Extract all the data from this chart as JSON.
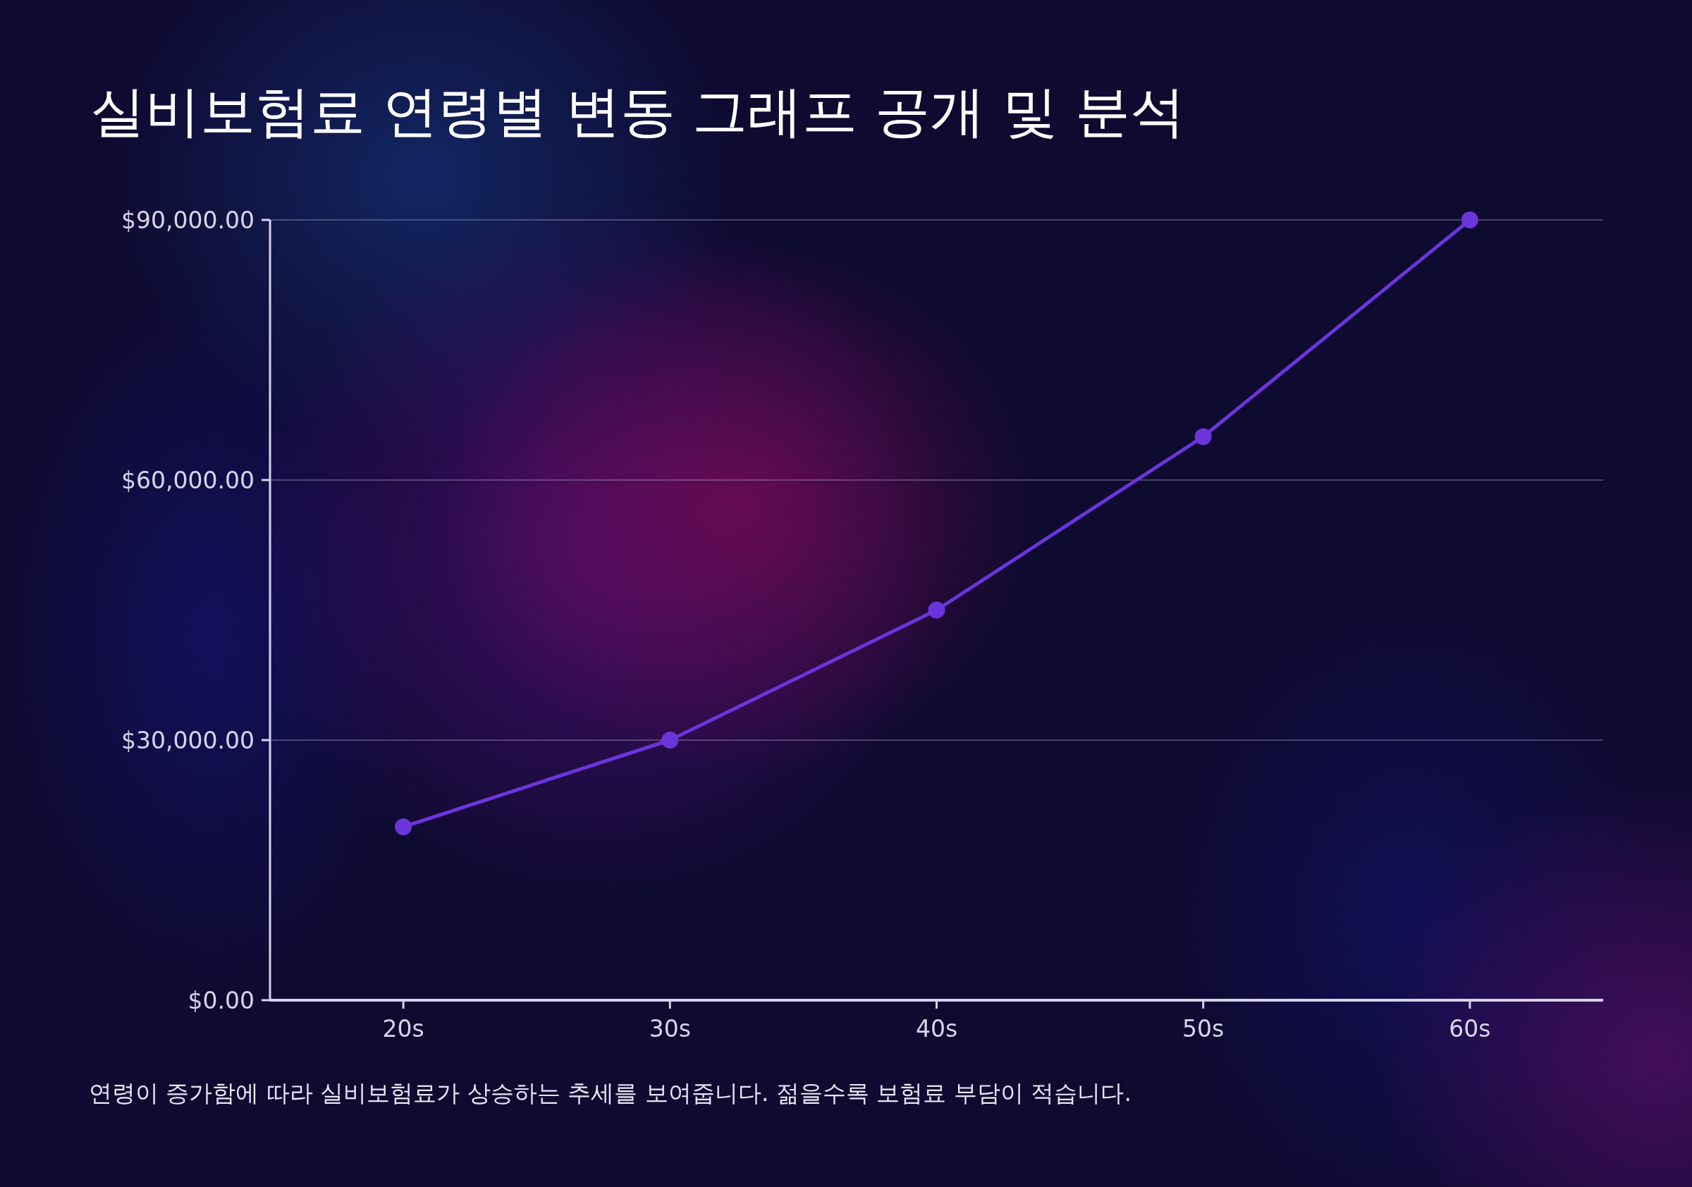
{
  "chart_data": {
    "type": "line",
    "title": "실비보험료 연령별 변동 그래프 공개 및 분석",
    "annotations": [
      "연령이 증가함에 따라 실비보험료가 상승하는 추세를 보여줍니다. 젊을수록 보험료 부담이 적습니다."
    ],
    "categories": [
      "20s",
      "30s",
      "40s",
      "50s",
      "60s"
    ],
    "series": [
      {
        "color": "#6b35dc",
        "values": [
          20000,
          30000,
          45000,
          65000,
          90000
        ]
      }
    ],
    "ylim": [
      0,
      90000
    ],
    "yticks": [
      {
        "value": 0,
        "label": "$0.00"
      },
      {
        "value": 30000,
        "label": "$30,000.00"
      },
      {
        "value": 60000,
        "label": "$60,000.00"
      },
      {
        "value": 90000,
        "label": "$90,000.00"
      }
    ],
    "grid": "y",
    "marker": "circle",
    "line_style": "solid"
  }
}
